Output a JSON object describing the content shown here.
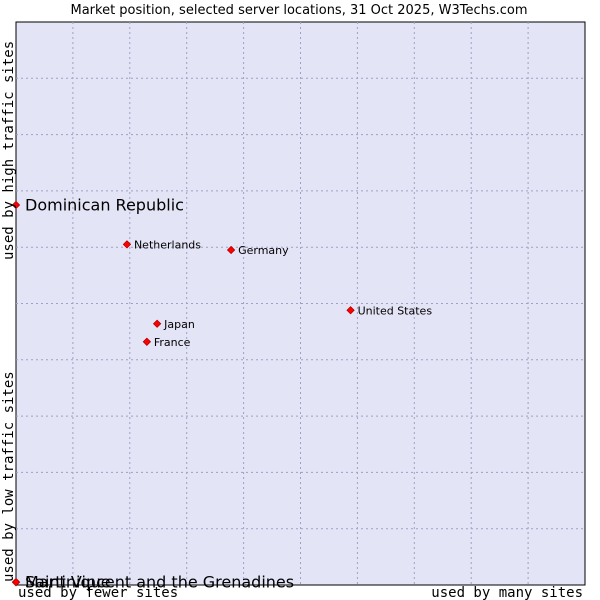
{
  "chart_data": {
    "type": "scatter",
    "title": "Market position, selected server locations, 31 Oct 2025, W3Techs.com",
    "xlabel_left": "used by fewer sites",
    "xlabel_right": "used by many sites",
    "ylabel_bottom": "used by low traffic sites",
    "ylabel_top": "used by high traffic sites",
    "grid": true,
    "xlim": [
      0,
      100
    ],
    "ylim": [
      0,
      100
    ],
    "grid_divisions": 10,
    "colors": {
      "plot_background": "#e4e4f7",
      "grid": "#a0a0c0",
      "marker": "#ff0000",
      "border": "#000000"
    },
    "points": [
      {
        "name": "Dominican Republic",
        "x": 0,
        "y": 67.5,
        "emphasis": true
      },
      {
        "name": "Netherlands",
        "x": 19.5,
        "y": 60.5,
        "emphasis": false
      },
      {
        "name": "Germany",
        "x": 37.8,
        "y": 59.5,
        "emphasis": false
      },
      {
        "name": "United States",
        "x": 58.8,
        "y": 48.8,
        "emphasis": false
      },
      {
        "name": "Japan",
        "x": 24.8,
        "y": 46.4,
        "emphasis": false
      },
      {
        "name": "France",
        "x": 23.0,
        "y": 43.2,
        "emphasis": false
      },
      {
        "name": "Saint Vincent and the Grenadines",
        "x": 0,
        "y": 0.5,
        "emphasis": true
      },
      {
        "name": "Martinique",
        "x": 0,
        "y": 0.5,
        "emphasis": true
      }
    ]
  }
}
